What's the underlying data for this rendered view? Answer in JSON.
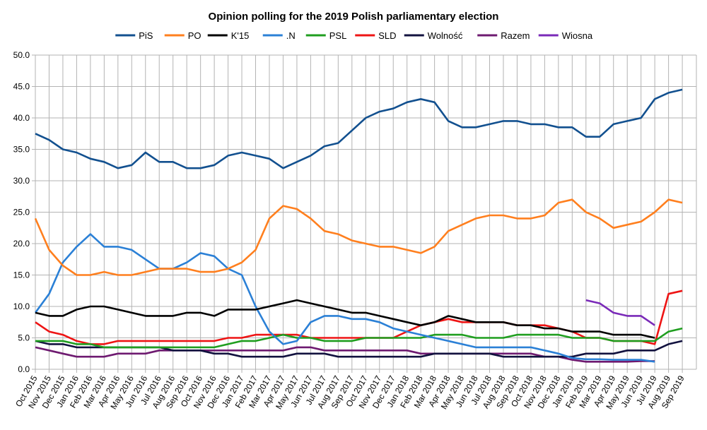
{
  "chart_data": {
    "type": "line",
    "title": "Opinion polling for the 2019 Polish parliamentary election",
    "xlabel": "",
    "ylabel": "",
    "ylim": [
      0,
      50
    ],
    "yticks": [
      "0.0",
      "5.0",
      "10.0",
      "15.0",
      "20.0",
      "25.0",
      "30.0",
      "35.0",
      "40.0",
      "45.0",
      "50.0"
    ],
    "grid": true,
    "legend_position": "top",
    "categories": [
      "Oct 2015",
      "Nov 2015",
      "Dec 2015",
      "Jan 2016",
      "Feb 2016",
      "Mar 2016",
      "Apr 2016",
      "May 2016",
      "Jun 2016",
      "Jul 2016",
      "Aug 2016",
      "Sep 2016",
      "Oct 2016",
      "Nov 2016",
      "Dec 2016",
      "Jan 2017",
      "Feb 2017",
      "Mar 2017",
      "Apr 2017",
      "May 2017",
      "Jun 2017",
      "Jul 2017",
      "Aug 2017",
      "Sep 2017",
      "Oct 2017",
      "Nov 2017",
      "Dec 2017",
      "Jan 2018",
      "Feb 2018",
      "Mar 2018",
      "Apr 2018",
      "May 2018",
      "Jun 2018",
      "Jul 2018",
      "Aug 2018",
      "Sep 2018",
      "Oct 2018",
      "Nov 2018",
      "Dec 2018",
      "Jan 2019",
      "Feb 2019",
      "Mar 2019",
      "Apr 2019",
      "May 2019",
      "Jun 2019",
      "Jul 2019",
      "Aug 2019",
      "Sep 2019"
    ],
    "series": [
      {
        "name": "PiS",
        "color": "#12508f",
        "values": [
          37.5,
          36.5,
          35,
          34.5,
          33.5,
          33,
          32,
          32.5,
          34.5,
          33,
          33,
          32,
          32,
          32.5,
          34,
          34.5,
          34,
          33.5,
          32,
          33,
          34,
          35.5,
          36,
          38,
          40,
          41,
          41.5,
          42.5,
          43,
          42.5,
          39.5,
          38.5,
          38.5,
          39,
          39.5,
          39.5,
          39,
          39,
          38.5,
          38.5,
          37,
          37,
          39,
          39.5,
          40,
          43,
          44,
          44.5
        ]
      },
      {
        "name": "PO",
        "color": "#ff7f1e",
        "values": [
          24,
          19,
          16.5,
          15,
          15,
          15.5,
          15,
          15,
          15.5,
          16,
          16,
          16,
          15.5,
          15.5,
          16,
          17,
          19,
          24,
          26,
          25.5,
          24,
          22,
          21.5,
          20.5,
          20,
          19.5,
          19.5,
          19,
          18.5,
          19.5,
          22,
          23,
          24,
          24.5,
          24.5,
          24,
          24,
          24.5,
          26.5,
          27,
          25,
          24,
          22.5,
          23,
          23.5,
          25,
          27,
          26.5
        ]
      },
      {
        "name": "K'15",
        "color": "#000000",
        "values": [
          9,
          8.5,
          8.5,
          9.5,
          10,
          10,
          9.5,
          9,
          8.5,
          8.5,
          8.5,
          9,
          9,
          8.5,
          9.5,
          9.5,
          9.5,
          10,
          10.5,
          11,
          10.5,
          10,
          9.5,
          9,
          9,
          8.5,
          8,
          7.5,
          7,
          7.5,
          8.5,
          8,
          7.5,
          7.5,
          7.5,
          7,
          7,
          6.5,
          6.5,
          6,
          6,
          6,
          5.5,
          5.5,
          5.5,
          5,
          null,
          null
        ]
      },
      {
        "name": ".N",
        "color": "#2b80d6",
        "values": [
          9,
          12,
          17,
          19.5,
          21.5,
          19.5,
          19.5,
          19,
          17.5,
          16,
          16,
          17,
          18.5,
          18,
          16,
          15,
          10,
          6,
          4,
          4.5,
          7.5,
          8.5,
          8.5,
          8,
          8,
          7.5,
          6.5,
          6,
          5.5,
          5,
          4.5,
          4,
          3.5,
          3.5,
          3.5,
          3.5,
          3.5,
          3,
          2.5,
          1.8,
          1.6,
          1.6,
          1.5,
          1.5,
          1.5,
          1.2,
          null,
          null
        ]
      },
      {
        "name": "PSL",
        "color": "#1f9e1f",
        "values": [
          4.5,
          4.5,
          4.5,
          4,
          4,
          3.5,
          3.5,
          3.5,
          3.5,
          3.5,
          3.5,
          3.5,
          3.5,
          3.5,
          4,
          4.5,
          4.5,
          5,
          5.5,
          5,
          5,
          4.5,
          4.5,
          4.5,
          5,
          5,
          5,
          5,
          5,
          5.5,
          5.5,
          5.5,
          5,
          5,
          5,
          5.5,
          5.5,
          5.5,
          5.5,
          5,
          5,
          5,
          4.5,
          4.5,
          4.5,
          4.5,
          6,
          6.5
        ]
      },
      {
        "name": "SLD",
        "color": "#ee1414",
        "values": [
          7.5,
          6,
          5.5,
          4.5,
          4,
          4,
          4.5,
          4.5,
          4.5,
          4.5,
          4.5,
          4.5,
          4.5,
          4.5,
          5,
          5,
          5.5,
          5.5,
          5.5,
          5.5,
          5,
          5,
          5,
          5,
          5,
          5,
          5,
          6,
          7,
          7.5,
          8,
          7.5,
          7.5,
          7.5,
          7.5,
          7,
          7,
          7,
          6.5,
          6,
          5,
          5,
          4.5,
          4.5,
          4.5,
          4,
          12,
          12.5
        ]
      },
      {
        "name": "Wolność",
        "color": "#12123f",
        "values": [
          4.5,
          4,
          4,
          3.5,
          3.5,
          3.5,
          3.5,
          3.5,
          3.5,
          3.5,
          3,
          3,
          3,
          2.5,
          2.5,
          2,
          2,
          2,
          2,
          2.5,
          2.5,
          2.5,
          2,
          2,
          2,
          2,
          2,
          2,
          2,
          2.5,
          2.5,
          2.5,
          2.5,
          2.5,
          2,
          2,
          2,
          2,
          2,
          2,
          2.5,
          2.5,
          2.5,
          3,
          3,
          3,
          4,
          4.5
        ]
      },
      {
        "name": "Razem",
        "color": "#6e1a70",
        "values": [
          3.5,
          3,
          2.5,
          2,
          2,
          2,
          2.5,
          2.5,
          2.5,
          3,
          3,
          3,
          3,
          3,
          3,
          3,
          3,
          3,
          3,
          3.5,
          3.5,
          3,
          3,
          3,
          3,
          3,
          3,
          3,
          2.5,
          2.5,
          2.5,
          2.5,
          2.5,
          2.5,
          2.5,
          2.5,
          2.5,
          2,
          2,
          1.5,
          1.2,
          1.2,
          1.2,
          1.2,
          1.3,
          1.3,
          null,
          null
        ]
      },
      {
        "name": "Wiosna",
        "color": "#7a2ab8",
        "values": [
          null,
          null,
          null,
          null,
          null,
          null,
          null,
          null,
          null,
          null,
          null,
          null,
          null,
          null,
          null,
          null,
          null,
          null,
          null,
          null,
          null,
          null,
          null,
          null,
          null,
          null,
          null,
          null,
          null,
          null,
          null,
          null,
          null,
          null,
          null,
          null,
          null,
          null,
          null,
          null,
          11,
          10.5,
          9,
          8.5,
          8.5,
          7,
          null,
          null
        ]
      }
    ]
  }
}
